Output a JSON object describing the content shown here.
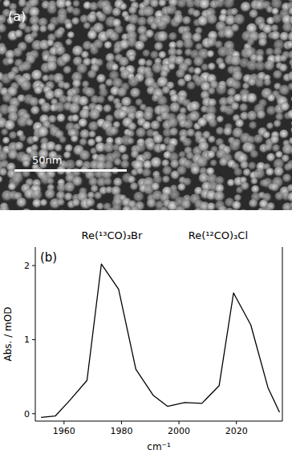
{
  "image_panel": {
    "label": "(a)",
    "scale_bar": "50nm"
  },
  "chart_data": {
    "type": "line",
    "panel_label": "(b)",
    "annotations": [
      "Re(¹³CO)₃Br",
      "Re(¹²CO)₃Cl"
    ],
    "x_label": "cm⁻¹",
    "y_label": "Abs. / mOD",
    "x": [
      1952,
      1957,
      1962,
      1968,
      1973,
      1979,
      1985,
      1991,
      1996,
      2002,
      2008,
      2014,
      2019,
      2025,
      2031,
      2035
    ],
    "values": [
      -0.05,
      -0.03,
      0.18,
      0.45,
      2.02,
      1.68,
      0.6,
      0.25,
      0.1,
      0.15,
      0.14,
      0.38,
      1.63,
      1.2,
      0.35,
      0.02
    ],
    "color": "#000000",
    "xlim": [
      1950,
      2036
    ],
    "xticks": [
      1960,
      1980,
      2000,
      2020
    ],
    "ylim": [
      -0.1,
      2.25
    ],
    "yticks": [
      0,
      1,
      2
    ],
    "grid": false
  }
}
